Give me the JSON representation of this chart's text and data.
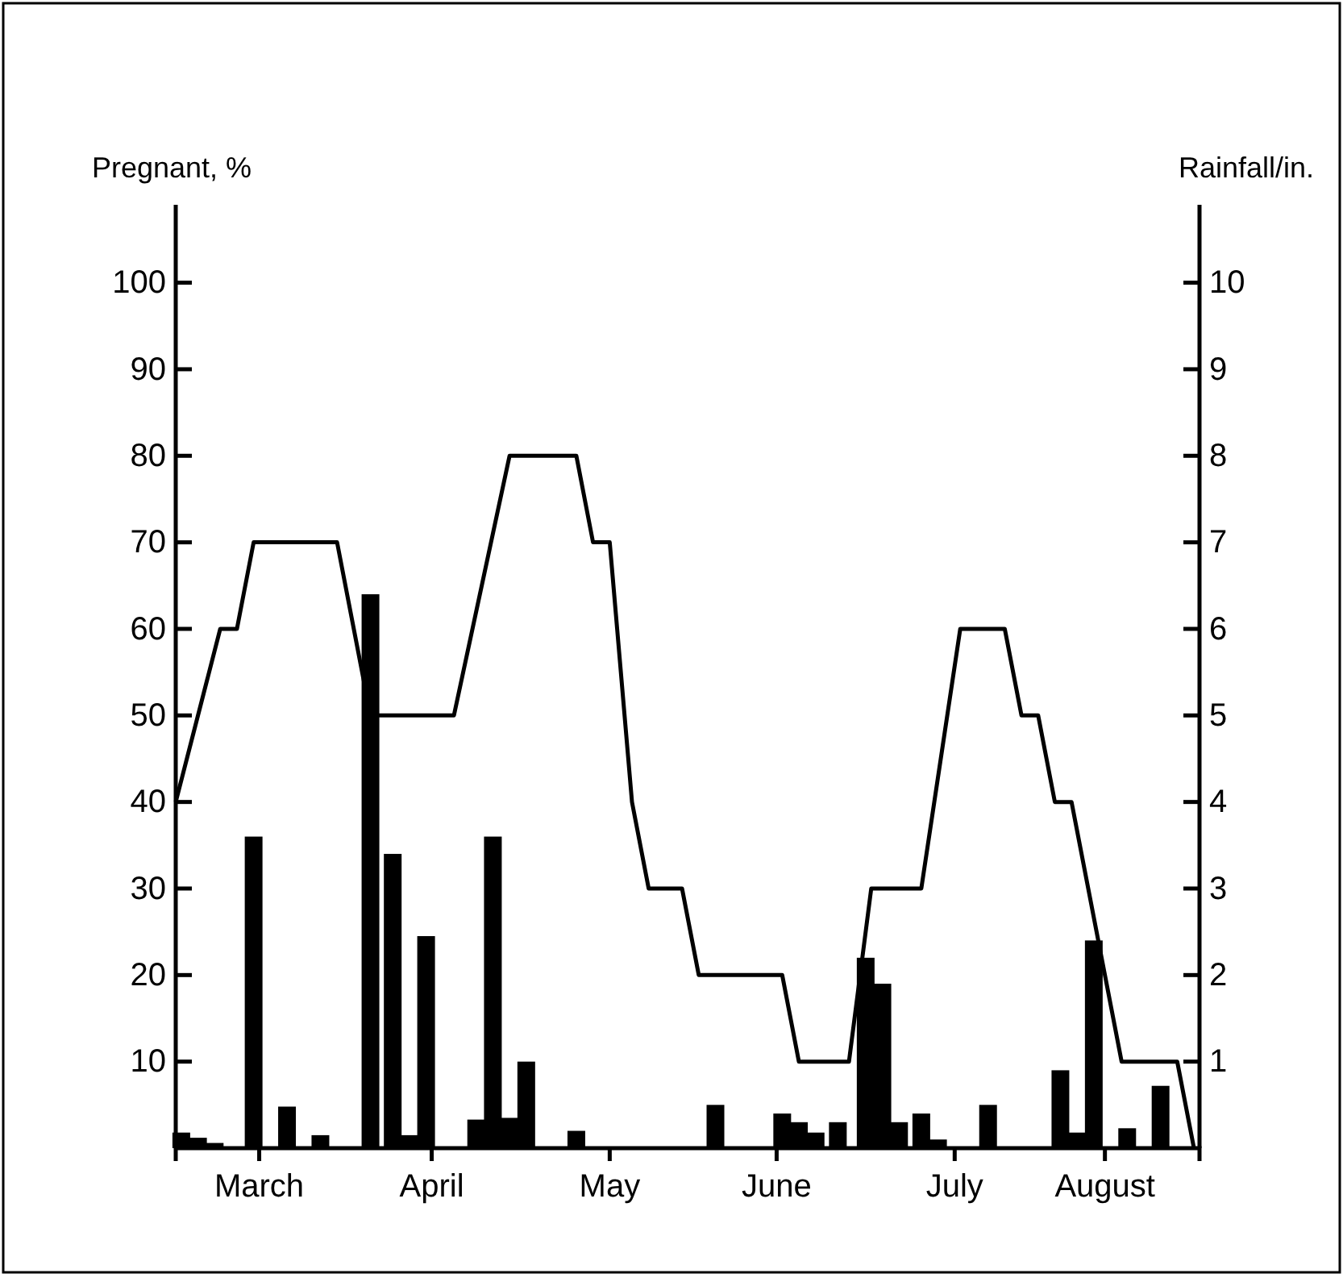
{
  "chart_data": {
    "type": "line",
    "ylabel": "Pregnant, %",
    "y2label": "Rainfall/in.",
    "xlim": [
      "--03-01",
      "--09-01"
    ],
    "xticks": [
      {
        "value": "--03-16",
        "label": "March"
      },
      {
        "value": "--04-16",
        "label": "April"
      },
      {
        "value": "--05-18",
        "label": "May"
      },
      {
        "value": "--06-17",
        "label": "June"
      },
      {
        "value": "--07-19",
        "label": "July"
      },
      {
        "value": "--08-15",
        "label": "August"
      }
    ],
    "ylim": [
      0,
      109
    ],
    "yticks": [
      10,
      20,
      30,
      40,
      50,
      60,
      70,
      80,
      90,
      100
    ],
    "y2lim": [
      0,
      10.9
    ],
    "y2ticks": [
      1,
      2,
      3,
      4,
      5,
      6,
      7,
      8,
      9,
      10
    ],
    "series": [
      {
        "type": "bar",
        "axis": "y2",
        "color": "#000000",
        "x": [
          "--03-02",
          "--03-05",
          "--03-08",
          "--03-15",
          "--03-21",
          "--03-27",
          "--04-05",
          "--04-09",
          "--04-12",
          "--04-15",
          "--04-24",
          "--04-27",
          "--04-30",
          "--05-03",
          "--05-12",
          "--06-06",
          "--06-18",
          "--06-21",
          "--06-24",
          "--06-28",
          "--07-03",
          "--07-06",
          "--07-09",
          "--07-13",
          "--07-16",
          "--07-25",
          "--08-07",
          "--08-10",
          "--08-13",
          "--08-19",
          "--08-25"
        ],
        "values": [
          0.18,
          0.12,
          0.06,
          3.6,
          0.48,
          0.15,
          6.4,
          3.4,
          0.15,
          2.45,
          0.33,
          3.6,
          0.35,
          1.0,
          0.2,
          0.5,
          0.4,
          0.3,
          0.18,
          0.3,
          2.2,
          1.9,
          0.3,
          0.4,
          0.1,
          0.5,
          0.9,
          0.18,
          2.4,
          0.23,
          0.72
        ]
      },
      {
        "color": "#000000",
        "x": [
          "--03-01",
          "--03-09",
          "--03-12",
          "--03-15",
          "--03-30",
          "--04-05",
          "--04-20",
          "--04-30",
          "--05-12",
          "--05-15",
          "--05-18",
          "--05-22",
          "--05-25",
          "--05-31",
          "--06-03",
          "--06-18",
          "--06-21",
          "--06-30",
          "--07-04",
          "--07-13",
          "--07-20",
          "--07-28",
          "--07-31",
          "--08-03",
          "--08-06",
          "--08-09",
          "--08-18",
          "--08-28",
          "--08-31"
        ],
        "values": [
          40,
          60,
          60,
          70,
          70,
          50,
          50,
          80,
          80,
          70,
          70,
          40,
          30,
          30,
          20,
          20,
          10,
          10,
          30,
          30,
          60,
          60,
          50,
          50,
          40,
          40,
          10,
          10,
          0
        ]
      }
    ]
  }
}
